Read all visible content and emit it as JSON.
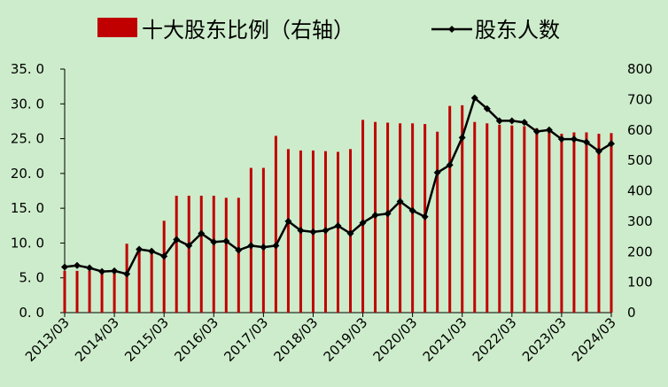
{
  "chart_data": {
    "type": "bar+line",
    "categories": [
      "2013/03",
      "2013/06",
      "2013/09",
      "2013/12",
      "2014/03",
      "2014/06",
      "2014/09",
      "2014/12",
      "2015/03",
      "2015/06",
      "2015/09",
      "2015/12",
      "2016/03",
      "2016/06",
      "2016/09",
      "2016/12",
      "2017/03",
      "2017/06",
      "2017/09",
      "2017/12",
      "2018/03",
      "2018/06",
      "2018/09",
      "2018/12",
      "2019/03",
      "2019/06",
      "2019/09",
      "2019/12",
      "2020/03",
      "2020/06",
      "2020/09",
      "2020/12",
      "2021/03",
      "2021/06",
      "2021/09",
      "2021/12",
      "2022/03",
      "2022/06",
      "2022/09",
      "2022/12",
      "2023/03",
      "2023/06",
      "2023/09",
      "2023/12",
      "2024/03"
    ],
    "x_tick_labels": [
      "2013/03",
      "2014/03",
      "2015/03",
      "2016/03",
      "2017/03",
      "2018/03",
      "2019/03",
      "2020/03",
      "2021/03",
      "2022/03",
      "2023/03",
      "2024/03"
    ],
    "series": [
      {
        "name": "十大股东比例（右轴）",
        "type": "bar",
        "axis": "left",
        "color": "#c00000",
        "values": [
          6.0,
          6.0,
          6.0,
          6.0,
          6.0,
          9.9,
          9.0,
          9.0,
          13.2,
          16.8,
          16.8,
          16.8,
          16.8,
          16.5,
          16.5,
          20.8,
          20.8,
          25.4,
          23.5,
          23.3,
          23.3,
          23.2,
          23.1,
          23.5,
          27.7,
          27.4,
          27.3,
          27.2,
          27.2,
          27.1,
          26.0,
          29.7,
          29.8,
          27.4,
          27.2,
          27.0,
          26.9,
          26.8,
          26.5,
          26.0,
          25.7,
          25.9,
          25.9,
          25.7,
          25.8
        ]
      },
      {
        "name": "股东人数",
        "type": "line",
        "axis": "right",
        "color": "#000000",
        "values": [
          150,
          155,
          147,
          135,
          137,
          127,
          208,
          202,
          185,
          240,
          220,
          260,
          232,
          235,
          205,
          220,
          215,
          220,
          300,
          270,
          265,
          270,
          285,
          260,
          295,
          320,
          325,
          365,
          335,
          315,
          460,
          485,
          575,
          705,
          670,
          630,
          630,
          625,
          595,
          600,
          570,
          570,
          560,
          530,
          555
        ]
      }
    ],
    "left_axis": {
      "min": 0,
      "max": 35,
      "step": 5,
      "tick_labels": [
        "0. 0",
        "5. 0",
        "10. 0",
        "15. 0",
        "20. 0",
        "25. 0",
        "30. 0",
        "35. 0"
      ]
    },
    "right_axis": {
      "min": 0,
      "max": 800,
      "step": 100,
      "tick_labels": [
        "0",
        "100",
        "200",
        "300",
        "400",
        "500",
        "600",
        "700",
        "800"
      ]
    },
    "legend": {
      "placement": "top-center",
      "items": [
        "十大股东比例（右轴）",
        "股东人数"
      ]
    }
  }
}
